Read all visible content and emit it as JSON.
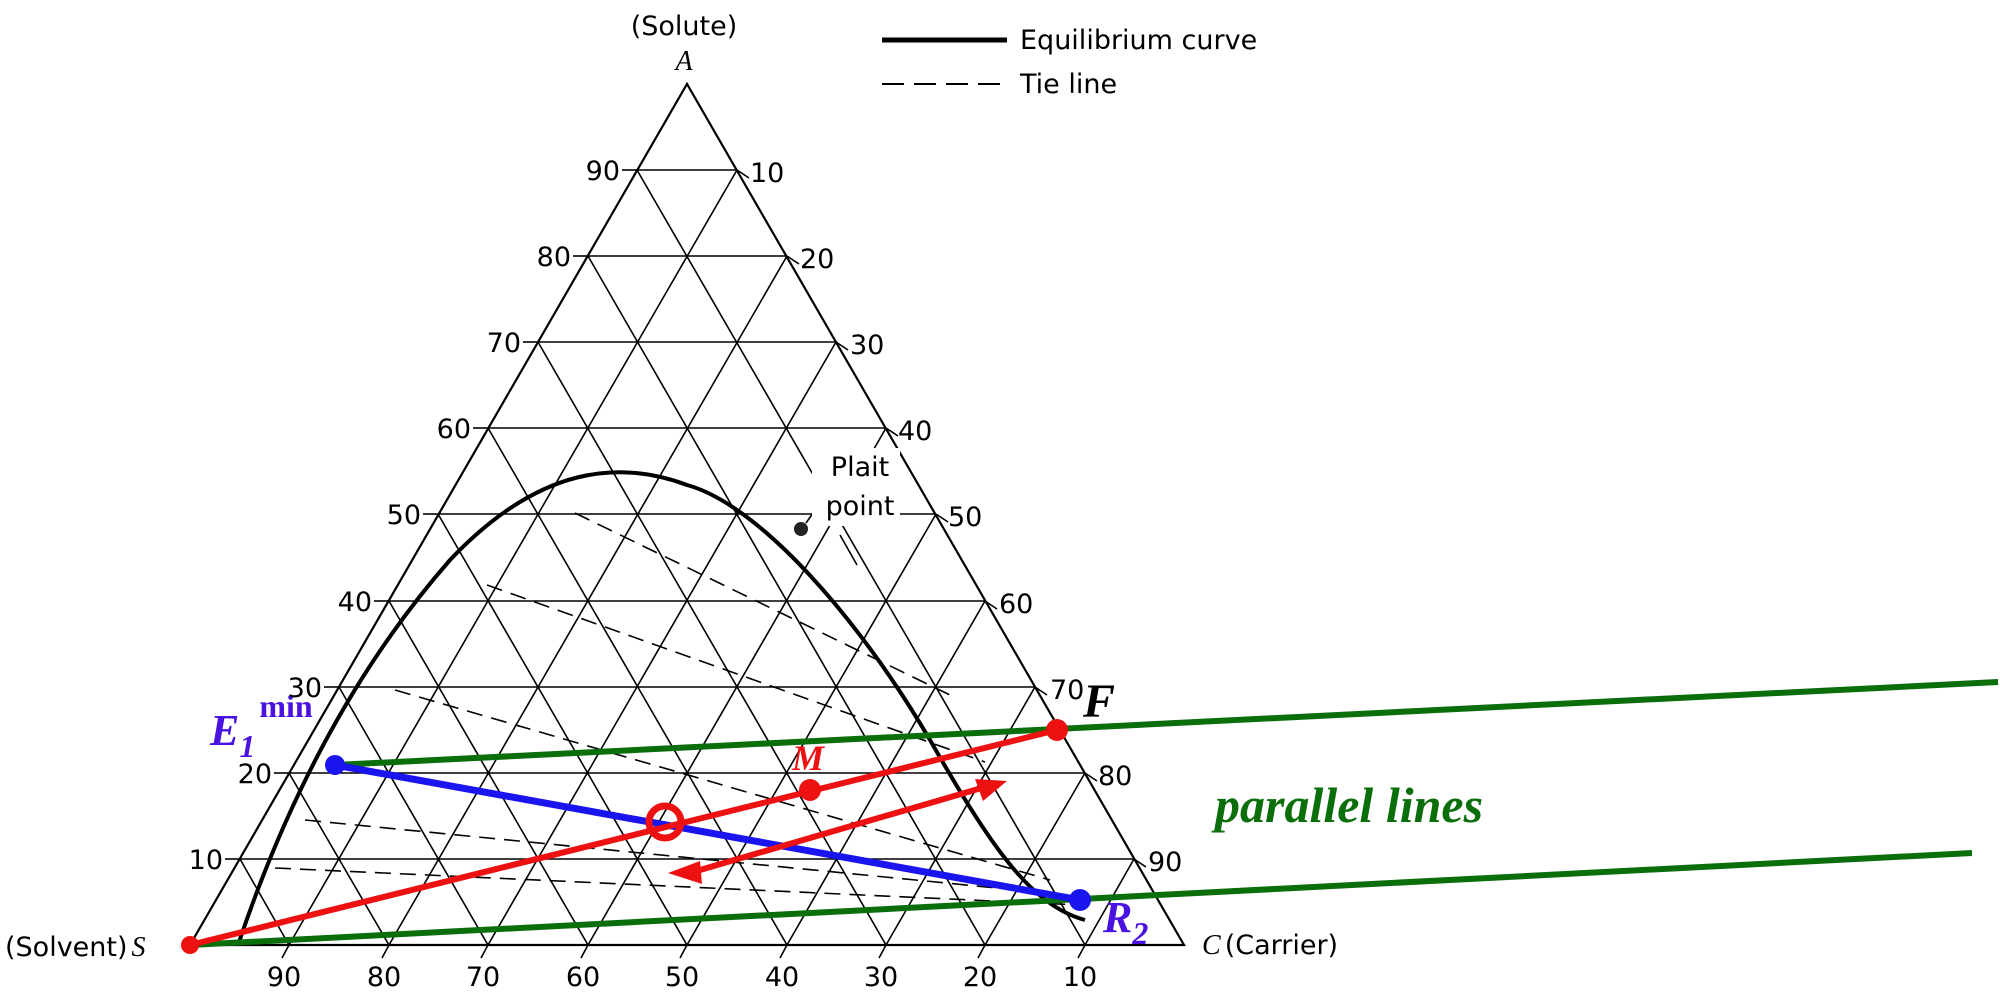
{
  "apex_top": {
    "sub": "(Solute)",
    "letter": "A"
  },
  "apex_left": {
    "prefix": "(Solvent)",
    "letter": "S"
  },
  "apex_right": {
    "letter": "C",
    "suffix": "(Carrier)"
  },
  "legend": {
    "equilibrium": "Equilibrium curve",
    "tie": "Tie line"
  },
  "plait": {
    "line1": "Plait",
    "line2": "point"
  },
  "left_ticks": [
    "90",
    "80",
    "70",
    "60",
    "50",
    "40",
    "30",
    "20",
    "10"
  ],
  "right_ticks": [
    "10",
    "20",
    "30",
    "40",
    "50",
    "60",
    "70",
    "80",
    "90"
  ],
  "bottom_ticks": [
    "90",
    "80",
    "70",
    "60",
    "50",
    "40",
    "30",
    "20",
    "10"
  ],
  "points": {
    "F": "F",
    "M": "M",
    "E": {
      "base": "E",
      "sub": "1",
      "sup": "min"
    },
    "R": {
      "base": "R",
      "sub": "2"
    }
  },
  "annotation": "parallel lines",
  "colors": {
    "grid": "#000000",
    "red": "#ee1111",
    "blue": "#1a14ee",
    "green": "#0a6e0a",
    "purple": "#4a12e0"
  }
}
